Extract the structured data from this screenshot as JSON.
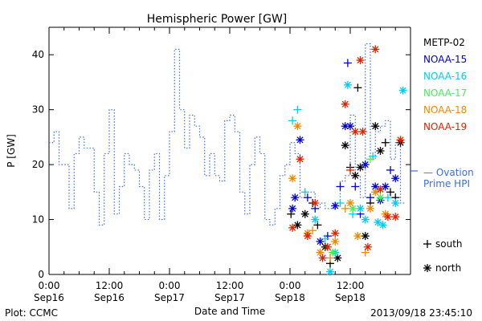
{
  "chart_data": {
    "type": "line",
    "title": "Hemispheric Power [GW]",
    "xlabel": "Date and Time",
    "ylabel": "P [GW]",
    "ylim": [
      0,
      45
    ],
    "yticks": [
      0,
      10,
      20,
      30,
      40
    ],
    "xlim": [
      0,
      72
    ],
    "x_units": "hours since Sep16 00:00",
    "xticks": [
      {
        "x": 0,
        "line1": "0:00",
        "line2": "Sep16"
      },
      {
        "x": 12,
        "line1": "12:00",
        "line2": "Sep16"
      },
      {
        "x": 24,
        "line1": "0:00",
        "line2": "Sep17"
      },
      {
        "x": 36,
        "line1": "12:00",
        "line2": "Sep17"
      },
      {
        "x": 48,
        "line1": "0:00",
        "line2": "Sep18"
      },
      {
        "x": 60,
        "line1": "12:00",
        "line2": "Sep18"
      }
    ],
    "footer_left": "Plot: CCMC",
    "footer_right": "2013/09/18 23:45:10",
    "grid": false,
    "series": [
      {
        "name": "Ovation Prime HPI",
        "label_line1": "Ovation",
        "label_line2": "Prime HPI",
        "style": "step-dotted",
        "color": "#3a6fd8",
        "x": [
          0,
          1,
          2,
          3,
          4,
          5,
          6,
          7,
          8,
          9,
          10,
          11,
          12,
          13,
          14,
          15,
          16,
          17,
          18,
          19,
          20,
          21,
          22,
          23,
          24,
          25,
          26,
          27,
          28,
          29,
          30,
          31,
          32,
          33,
          34,
          35,
          36,
          37,
          38,
          39,
          40,
          41,
          42,
          43,
          44,
          45,
          46,
          47,
          48,
          49,
          50,
          51,
          52,
          53,
          54,
          55,
          56,
          57,
          58,
          59,
          60,
          61,
          62,
          63,
          64,
          65,
          66,
          67,
          68,
          69,
          70
        ],
        "values": [
          24,
          26,
          20,
          20,
          12,
          22,
          25,
          23,
          23,
          15,
          9,
          22,
          30,
          11,
          16,
          22,
          20,
          19,
          16,
          10,
          19,
          22,
          10,
          18,
          26,
          41,
          30,
          23,
          29,
          27,
          25,
          18,
          22,
          18,
          17,
          28,
          29,
          26,
          15,
          11,
          20,
          25,
          22,
          10,
          9,
          12,
          18,
          20,
          24,
          22,
          14,
          15,
          15,
          12,
          13,
          12,
          12,
          13,
          17,
          18,
          29,
          18,
          14,
          42,
          21,
          26,
          27,
          28,
          21,
          24,
          13
        ],
        "end_x": 71
      },
      {
        "name": "METP-02",
        "color": "#000000",
        "points": [
          {
            "x": 48.2,
            "y": 11,
            "m": "s"
          },
          {
            "x": 49.5,
            "y": 9,
            "m": "n"
          },
          {
            "x": 51.0,
            "y": 11,
            "m": "n"
          },
          {
            "x": 52.5,
            "y": 13,
            "m": "s"
          },
          {
            "x": 53.5,
            "y": 9,
            "m": "s"
          },
          {
            "x": 55.0,
            "y": 5,
            "m": "n"
          },
          {
            "x": 56.0,
            "y": 2,
            "m": "s"
          },
          {
            "x": 57.5,
            "y": 3,
            "m": "n"
          },
          {
            "x": 59.0,
            "y": 23.5,
            "m": "n"
          },
          {
            "x": 60.0,
            "y": 19.5,
            "m": "s"
          },
          {
            "x": 61.0,
            "y": 18,
            "m": "n"
          },
          {
            "x": 61.5,
            "y": 34,
            "m": "s"
          },
          {
            "x": 62.0,
            "y": 19.5,
            "m": "n"
          },
          {
            "x": 63.0,
            "y": 7,
            "m": "n"
          },
          {
            "x": 64.0,
            "y": 13,
            "m": "s"
          },
          {
            "x": 65.0,
            "y": 27,
            "m": "n"
          },
          {
            "x": 66.0,
            "y": 22.5,
            "m": "n"
          },
          {
            "x": 67.0,
            "y": 24,
            "m": "s"
          },
          {
            "x": 68.0,
            "y": 15,
            "m": "s"
          },
          {
            "x": 69.0,
            "y": 14,
            "m": "s"
          },
          {
            "x": 70.0,
            "y": 24,
            "m": "n"
          }
        ]
      },
      {
        "name": "NOAA-15",
        "color": "#0000cc",
        "points": [
          {
            "x": 48.5,
            "y": 12,
            "m": "n"
          },
          {
            "x": 49.0,
            "y": 14,
            "m": "n"
          },
          {
            "x": 50.0,
            "y": 24.5,
            "m": "n"
          },
          {
            "x": 51.5,
            "y": 14,
            "m": "s"
          },
          {
            "x": 53.0,
            "y": 12,
            "m": "s"
          },
          {
            "x": 54.0,
            "y": 6,
            "m": "n"
          },
          {
            "x": 55.5,
            "y": 7,
            "m": "s"
          },
          {
            "x": 57.0,
            "y": 12.5,
            "m": "n"
          },
          {
            "x": 58.0,
            "y": 16,
            "m": "s"
          },
          {
            "x": 59.0,
            "y": 27,
            "m": "n"
          },
          {
            "x": 59.5,
            "y": 38.5,
            "m": "s"
          },
          {
            "x": 60.0,
            "y": 27,
            "m": "n"
          },
          {
            "x": 61.0,
            "y": 16,
            "m": "s"
          },
          {
            "x": 62.0,
            "y": 11,
            "m": "s"
          },
          {
            "x": 63.0,
            "y": 20,
            "m": "n"
          },
          {
            "x": 64.0,
            "y": 14,
            "m": "s"
          },
          {
            "x": 65.0,
            "y": 16,
            "m": "n"
          },
          {
            "x": 66.0,
            "y": 13.5,
            "m": "n"
          },
          {
            "x": 67.0,
            "y": 16,
            "m": "n"
          },
          {
            "x": 68.0,
            "y": 19,
            "m": "s"
          },
          {
            "x": 69.0,
            "y": 17.5,
            "m": "n"
          }
        ]
      },
      {
        "name": "NOAA-16",
        "color": "#00ccee",
        "points": [
          {
            "x": 48.5,
            "y": 28,
            "m": "s"
          },
          {
            "x": 49.5,
            "y": 30,
            "m": "s"
          },
          {
            "x": 51.0,
            "y": 15,
            "m": "s"
          },
          {
            "x": 53.0,
            "y": 10,
            "m": "n"
          },
          {
            "x": 55.0,
            "y": 6.5,
            "m": "s"
          },
          {
            "x": 56.0,
            "y": 0.5,
            "m": "n"
          },
          {
            "x": 57.0,
            "y": 4,
            "m": "n"
          },
          {
            "x": 58.0,
            "y": 13,
            "m": "s"
          },
          {
            "x": 59.5,
            "y": 34.5,
            "m": "n"
          },
          {
            "x": 60.5,
            "y": 11,
            "m": "s"
          },
          {
            "x": 62.0,
            "y": 12,
            "m": "n"
          },
          {
            "x": 63.0,
            "y": 10,
            "m": "n"
          },
          {
            "x": 64.5,
            "y": 21.5,
            "m": "s"
          },
          {
            "x": 65.5,
            "y": 9.5,
            "m": "n"
          },
          {
            "x": 66.5,
            "y": 9,
            "m": "n"
          },
          {
            "x": 67.5,
            "y": 14,
            "m": "s"
          },
          {
            "x": 69.0,
            "y": 13,
            "m": "n"
          },
          {
            "x": 70.5,
            "y": 33.5,
            "m": "n"
          }
        ]
      },
      {
        "name": "NOAA-17",
        "color": "#44ee55",
        "points": [
          {
            "x": 56.5,
            "y": 4,
            "m": "n"
          },
          {
            "x": 60.5,
            "y": 12,
            "m": "n"
          },
          {
            "x": 64.0,
            "y": 21,
            "m": "s"
          },
          {
            "x": 66.0,
            "y": 14,
            "m": "n"
          }
        ]
      },
      {
        "name": "NOAA-18",
        "color": "#ee8800",
        "points": [
          {
            "x": 48.5,
            "y": 17.5,
            "m": "n"
          },
          {
            "x": 49.5,
            "y": 27,
            "m": "n"
          },
          {
            "x": 51.5,
            "y": 7.5,
            "m": "n"
          },
          {
            "x": 52.5,
            "y": 8,
            "m": "s"
          },
          {
            "x": 54.0,
            "y": 4,
            "m": "n"
          },
          {
            "x": 56.0,
            "y": 3,
            "m": "s"
          },
          {
            "x": 57.0,
            "y": 6,
            "m": "n"
          },
          {
            "x": 59.0,
            "y": 12,
            "m": "s"
          },
          {
            "x": 60.0,
            "y": 13,
            "m": "n"
          },
          {
            "x": 61.5,
            "y": 7,
            "m": "n"
          },
          {
            "x": 63.0,
            "y": 4,
            "m": "s"
          },
          {
            "x": 64.0,
            "y": 12,
            "m": "n"
          },
          {
            "x": 65.0,
            "y": 15,
            "m": "n"
          },
          {
            "x": 67.0,
            "y": 11,
            "m": "n"
          }
        ]
      },
      {
        "name": "NOAA-19",
        "color": "#dd2200",
        "points": [
          {
            "x": 48.5,
            "y": 8.5,
            "m": "n"
          },
          {
            "x": 50.0,
            "y": 21,
            "m": "n"
          },
          {
            "x": 51.5,
            "y": 7,
            "m": "n"
          },
          {
            "x": 53.0,
            "y": 13,
            "m": "n"
          },
          {
            "x": 54.5,
            "y": 3,
            "m": "n"
          },
          {
            "x": 55.5,
            "y": 5,
            "m": "n"
          },
          {
            "x": 57.0,
            "y": 7.5,
            "m": "n"
          },
          {
            "x": 59.0,
            "y": 31,
            "m": "n"
          },
          {
            "x": 60.0,
            "y": 19,
            "m": "s"
          },
          {
            "x": 61.0,
            "y": 26,
            "m": "n"
          },
          {
            "x": 62.0,
            "y": 39,
            "m": "n"
          },
          {
            "x": 62.5,
            "y": 26,
            "m": "n"
          },
          {
            "x": 63.5,
            "y": 5,
            "m": "n"
          },
          {
            "x": 65.0,
            "y": 41,
            "m": "n"
          },
          {
            "x": 66.0,
            "y": 15.5,
            "m": "n"
          },
          {
            "x": 67.5,
            "y": 10.5,
            "m": "n"
          },
          {
            "x": 69.0,
            "y": 10.5,
            "m": "n"
          },
          {
            "x": 70.0,
            "y": 24.5,
            "m": "n"
          }
        ]
      }
    ],
    "marker_key": [
      {
        "symbol": "+",
        "label": "south"
      },
      {
        "symbol": "*",
        "label": "north"
      }
    ]
  }
}
